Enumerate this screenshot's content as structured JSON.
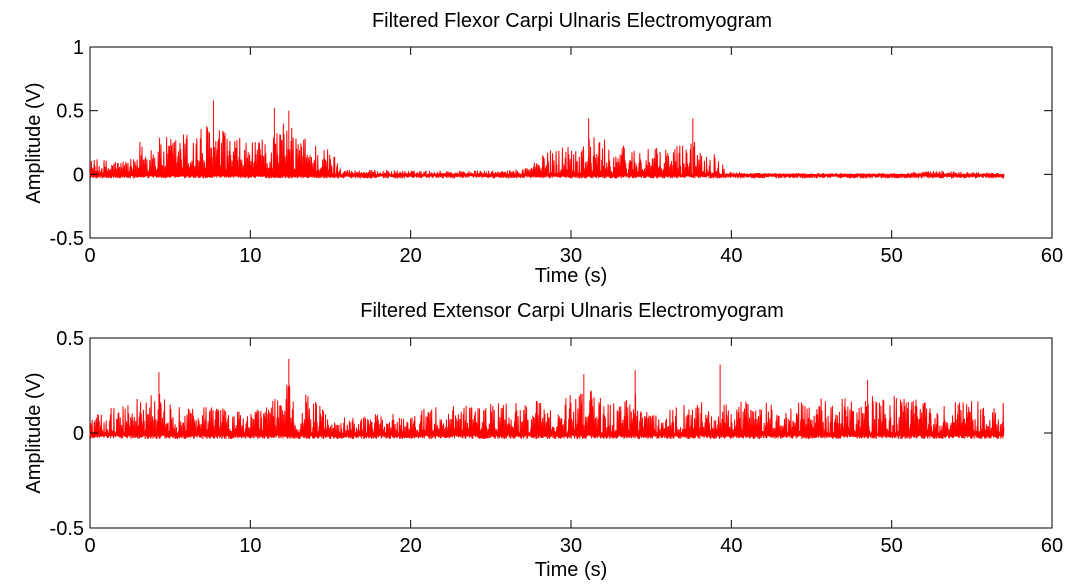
{
  "colors": {
    "signal": "#ff0000",
    "axes": "#000000",
    "background": "#ffffff"
  },
  "chart_data": [
    {
      "type": "line",
      "title": "Filtered Flexor Carpi Ulnaris Electromyogram",
      "xlabel": "Time (s)",
      "ylabel": "Amplitude (V)",
      "xlim": [
        0,
        60
      ],
      "ylim": [
        -0.5,
        1
      ],
      "xticks": [
        0,
        10,
        20,
        30,
        40,
        50,
        60
      ],
      "xtick_labels": [
        "0",
        "10",
        "20",
        "30",
        "40",
        "50",
        "60"
      ],
      "yticks": [
        1,
        0.5,
        0,
        -0.5
      ],
      "ytick_labels": [
        "1",
        "0.5",
        "0",
        "-0.5"
      ],
      "grid": false,
      "series": [
        {
          "color": "#ff0000",
          "x_range": [
            0,
            57
          ],
          "envelope": {
            "t": [
              0,
              3,
              3.1,
              5,
              7.5,
              9,
              10.5,
              12,
              13.5,
              15,
              16,
              20,
              26,
              27,
              29,
              31,
              33,
              35,
              36,
              37.5,
              39,
              40,
              42,
              50,
              53,
              57
            ],
            "amp": [
              0.12,
              0.12,
              0.28,
              0.3,
              0.42,
              0.3,
              0.25,
              0.42,
              0.3,
              0.2,
              0.04,
              0.03,
              0.03,
              0.05,
              0.22,
              0.32,
              0.24,
              0.2,
              0.22,
              0.28,
              0.18,
              0.02,
              0.01,
              0.01,
              0.03,
              0.01
            ]
          },
          "peaks": [
            {
              "x": 7.7,
              "y": 0.58
            },
            {
              "x": 11.5,
              "y": 0.52
            },
            {
              "x": 12.4,
              "y": 0.5
            },
            {
              "x": 31.1,
              "y": 0.44
            },
            {
              "x": 37.6,
              "y": 0.44
            }
          ]
        }
      ]
    },
    {
      "type": "line",
      "title": "Filtered Extensor Carpi Ulnaris Electromyogram",
      "xlabel": "Time (s)",
      "ylabel": "Amplitude (V)",
      "xlim": [
        0,
        60
      ],
      "ylim": [
        -0.5,
        0.5
      ],
      "xticks": [
        0,
        10,
        20,
        30,
        40,
        50,
        60
      ],
      "xtick_labels": [
        "0",
        "10",
        "20",
        "30",
        "40",
        "50",
        "60"
      ],
      "yticks": [
        0.5,
        0,
        -0.5
      ],
      "ytick_labels": [
        "0.5",
        "0",
        "-0.5"
      ],
      "grid": false,
      "series": [
        {
          "color": "#ff0000",
          "x_range": [
            0,
            57
          ],
          "envelope": {
            "t": [
              0,
              2,
              4.5,
              6,
              8,
              10,
              11,
              12.5,
              14,
              15,
              18,
              22,
              26,
              30,
              31,
              33,
              34,
              35,
              37,
              40,
              45,
              50,
              53,
              57
            ],
            "amp": [
              0.08,
              0.16,
              0.22,
              0.14,
              0.14,
              0.1,
              0.16,
              0.28,
              0.18,
              0.08,
              0.1,
              0.14,
              0.16,
              0.2,
              0.24,
              0.14,
              0.22,
              0.1,
              0.16,
              0.18,
              0.18,
              0.2,
              0.18,
              0.16
            ]
          },
          "peaks": [
            {
              "x": 12.4,
              "y": 0.39
            },
            {
              "x": 39.3,
              "y": 0.36
            },
            {
              "x": 4.3,
              "y": 0.32
            },
            {
              "x": 30.8,
              "y": 0.31
            },
            {
              "x": 34.0,
              "y": 0.33
            },
            {
              "x": 48.5,
              "y": 0.28
            }
          ]
        }
      ]
    }
  ]
}
